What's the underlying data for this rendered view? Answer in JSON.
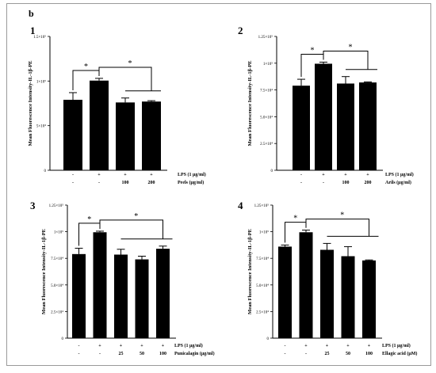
{
  "figure": {
    "label": "b"
  },
  "chart_data": [
    {
      "type": "bar",
      "panel_label": "1",
      "ylabel": "Mean Fluorescence Intensity-IL-1β-PE",
      "ylim": [
        0,
        150000
      ],
      "yticks": [
        0,
        50000,
        100000,
        150000
      ],
      "ytick_labels": [
        "0",
        "5×10⁴",
        "1×10⁵",
        "1.5×10⁵"
      ],
      "categories": [
        "1",
        "2",
        "3",
        "4"
      ],
      "values": [
        79000,
        100500,
        76000,
        77000
      ],
      "errors": [
        8000,
        2500,
        5000,
        1000
      ],
      "factor_rows": [
        {
          "label": "LPS (1 μg/ml)",
          "cells": [
            "-",
            "+",
            "+",
            "+"
          ]
        },
        {
          "label": "Peels (μg/ml)",
          "cells": [
            "-",
            "-",
            "100",
            "200"
          ]
        }
      ],
      "significance": [
        {
          "type": "pair",
          "from": 0,
          "to": 1,
          "label": "*"
        },
        {
          "type": "group",
          "from": 1,
          "to": [
            2,
            3
          ],
          "label": "*"
        }
      ]
    },
    {
      "type": "bar",
      "panel_label": "2",
      "ylabel": "Mean Fluorescence Intensity-IL-1β-PE",
      "ylim": [
        0,
        125000
      ],
      "yticks": [
        0,
        25000,
        50000,
        75000,
        100000,
        125000
      ],
      "ytick_labels": [
        "0",
        "2.5×10⁴",
        "5.0×10⁴",
        "7.5×10⁴",
        "1×10⁵",
        "1.25×10⁵"
      ],
      "categories": [
        "1",
        "2",
        "3",
        "4"
      ],
      "values": [
        79000,
        99500,
        81000,
        82000
      ],
      "errors": [
        6000,
        1500,
        6500,
        500
      ],
      "factor_rows": [
        {
          "label": "LPS (1 μg/ml)",
          "cells": [
            "-",
            "+",
            "+",
            "+"
          ]
        },
        {
          "label": "Arils (μg/ml)",
          "cells": [
            "-",
            "-",
            "100",
            "200"
          ]
        }
      ],
      "significance": [
        {
          "type": "pair",
          "from": 0,
          "to": 1,
          "label": "*"
        },
        {
          "type": "group",
          "from": 1,
          "to": [
            2,
            3
          ],
          "label": "*"
        }
      ]
    },
    {
      "type": "bar",
      "panel_label": "3",
      "ylabel": "Mean Fluorescence Intensity-IL-1β-PE",
      "ylim": [
        0,
        125000
      ],
      "yticks": [
        0,
        25000,
        50000,
        75000,
        100000,
        125000
      ],
      "ytick_labels": [
        "0",
        "2.5×10⁴",
        "5.0×10⁴",
        "7.5×10⁴",
        "1×10⁵",
        "1.25×10⁵"
      ],
      "categories": [
        "1",
        "2",
        "3",
        "4",
        "5"
      ],
      "values": [
        79000,
        99500,
        78500,
        74000,
        84000
      ],
      "errors": [
        5500,
        1000,
        5000,
        3000,
        2500
      ],
      "factor_rows": [
        {
          "label": "LPS (1 μg/ml)",
          "cells": [
            "-",
            "+",
            "+",
            "+",
            "+"
          ]
        },
        {
          "label": "Punicalagin (μg/ml)",
          "cells": [
            "-",
            "-",
            "25",
            "50",
            "100"
          ]
        }
      ],
      "significance": [
        {
          "type": "pair",
          "from": 0,
          "to": 1,
          "label": "*"
        },
        {
          "type": "group",
          "from": 1,
          "to": [
            2,
            3,
            4
          ],
          "label": "*"
        }
      ]
    },
    {
      "type": "bar",
      "panel_label": "4",
      "ylabel": "Mean Fluorescence Intensity-IL-1β-PE",
      "ylim": [
        0,
        125000
      ],
      "yticks": [
        0,
        25000,
        50000,
        75000,
        100000,
        125000
      ],
      "ytick_labels": [
        "0",
        "2.5×10⁴",
        "5.0×10⁴",
        "7.5×10⁴",
        "1×10⁵",
        "1.25×10⁵"
      ],
      "categories": [
        "1",
        "2",
        "3",
        "4",
        "5"
      ],
      "values": [
        86000,
        99500,
        83000,
        77000,
        73000
      ],
      "errors": [
        1500,
        2000,
        6000,
        9000,
        500
      ],
      "factor_rows": [
        {
          "label": "LPS (1 μg/ml)",
          "cells": [
            "-",
            "+",
            "+",
            "+",
            "+"
          ]
        },
        {
          "label": "Ellagic acid (μM)",
          "cells": [
            "-",
            "-",
            "25",
            "50",
            "100"
          ]
        }
      ],
      "significance": [
        {
          "type": "pair",
          "from": 0,
          "to": 1,
          "label": "*"
        },
        {
          "type": "group",
          "from": 1,
          "to": [
            2,
            3,
            4
          ],
          "label": "*"
        }
      ]
    }
  ]
}
